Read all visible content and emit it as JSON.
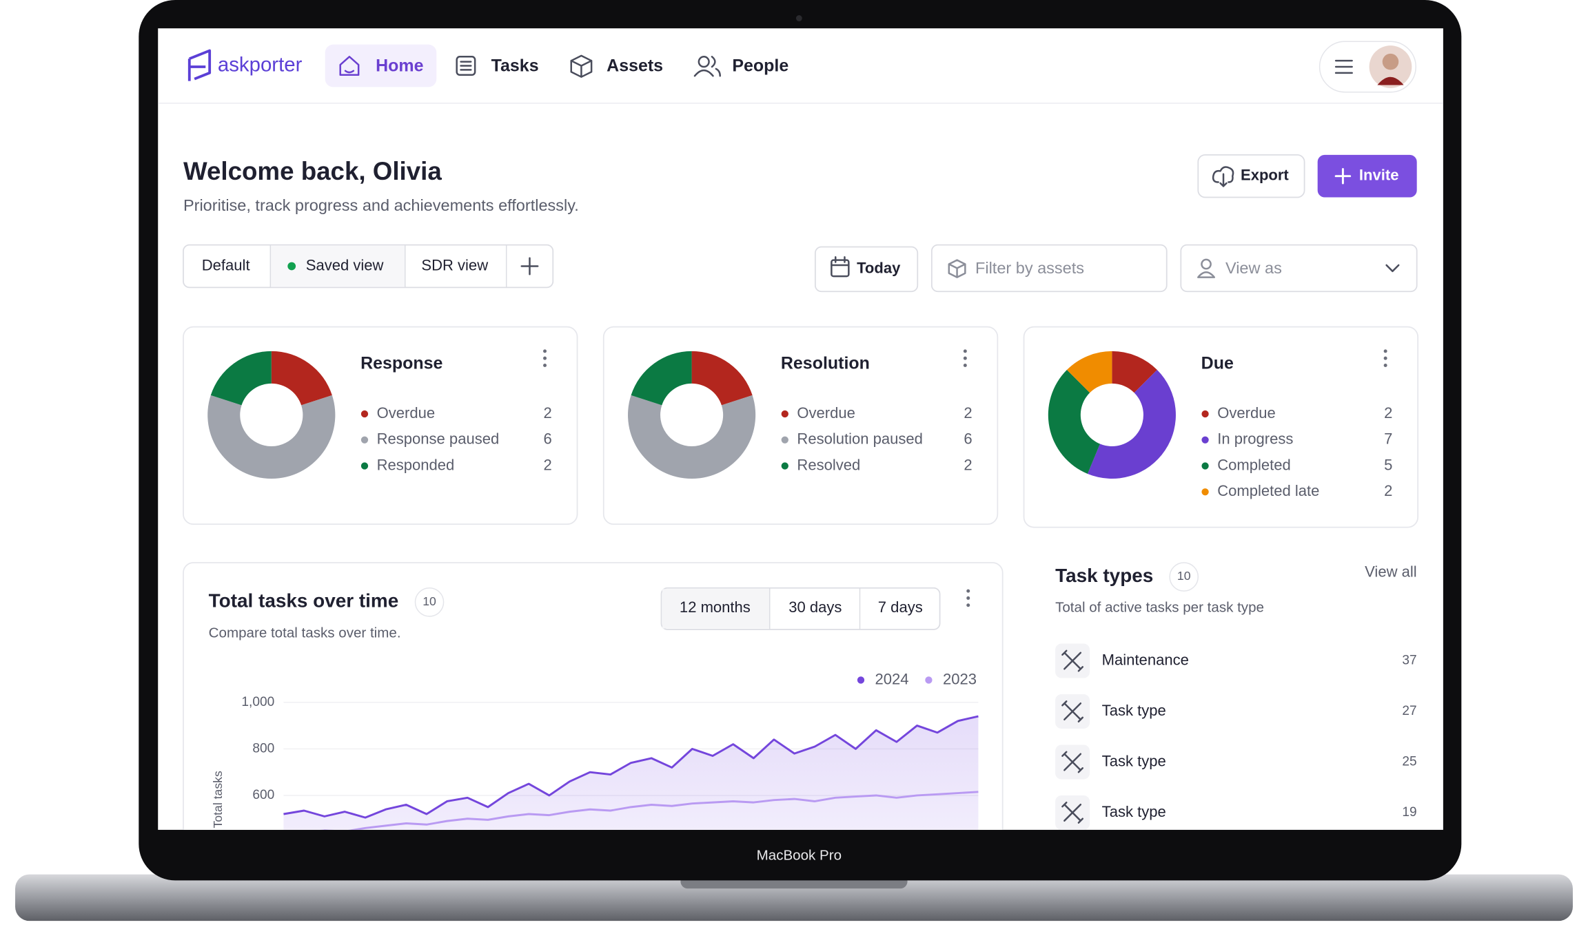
{
  "nav": {
    "brand": "askporter",
    "items": [
      "Home",
      "Tasks",
      "Assets",
      "People"
    ]
  },
  "header": {
    "title": "Welcome back, Olivia",
    "subtitle": "Prioritise, track progress and achievements effortlessly.",
    "export": "Export",
    "invite": "Invite"
  },
  "views": [
    "Default",
    "Saved view",
    "SDR view"
  ],
  "filters": {
    "date": "Today",
    "assets": "Filter by assets",
    "view_as": "View as"
  },
  "chart_data": [
    {
      "type": "pie",
      "title": "Response",
      "categories": [
        "Overdue",
        "Response paused",
        "Responded"
      ],
      "values": [
        2,
        6,
        2
      ],
      "colors": [
        "#b3261e",
        "#a0a4ad",
        "#0b7a43"
      ]
    },
    {
      "type": "pie",
      "title": "Resolution",
      "categories": [
        "Overdue",
        "Resolution paused",
        "Resolved"
      ],
      "values": [
        2,
        6,
        2
      ],
      "colors": [
        "#b3261e",
        "#a0a4ad",
        "#0b7a43"
      ]
    },
    {
      "type": "pie",
      "title": "Due",
      "categories": [
        "Overdue",
        "In progress",
        "Completed",
        "Completed late"
      ],
      "values": [
        2,
        7,
        5,
        2
      ],
      "colors": [
        "#b3261e",
        "#6a3fd0",
        "#0b7a43",
        "#f08c00"
      ]
    },
    {
      "type": "line",
      "title": "Total tasks over time",
      "count": 10,
      "subtitle": "Compare total tasks over time.",
      "ranges": [
        "12 months",
        "30 days",
        "7 days"
      ],
      "ylabel": "Total tasks",
      "ylim": [
        400,
        1000
      ],
      "yticks": [
        {
          "value": 1000,
          "label": "1,000"
        },
        800,
        600
      ],
      "series": [
        {
          "name": "2024",
          "color": "#7446dc",
          "values": [
            520,
            535,
            510,
            530,
            505,
            540,
            560,
            520,
            575,
            590,
            550,
            610,
            650,
            600,
            660,
            700,
            690,
            740,
            760,
            720,
            800,
            770,
            820,
            760,
            840,
            780,
            810,
            860,
            800,
            880,
            830,
            900,
            870,
            920,
            940
          ]
        },
        {
          "name": "2023",
          "color": "#b99af2",
          "values": [
            430,
            440,
            450,
            445,
            460,
            470,
            480,
            475,
            490,
            500,
            495,
            510,
            520,
            515,
            530,
            540,
            535,
            550,
            560,
            555,
            565,
            570,
            575,
            570,
            580,
            585,
            575,
            590,
            595,
            600,
            590,
            600,
            605,
            610,
            615
          ]
        }
      ]
    }
  ],
  "task_types": {
    "title": "Task types",
    "count": 10,
    "subtitle": "Total of active tasks per task type",
    "view_all": "View all",
    "items": [
      {
        "name": "Maintenance",
        "value": 37
      },
      {
        "name": "Task type",
        "value": 27
      },
      {
        "name": "Task type",
        "value": 25
      },
      {
        "name": "Task type",
        "value": 19
      }
    ]
  },
  "device_label": "MacBook Pro"
}
